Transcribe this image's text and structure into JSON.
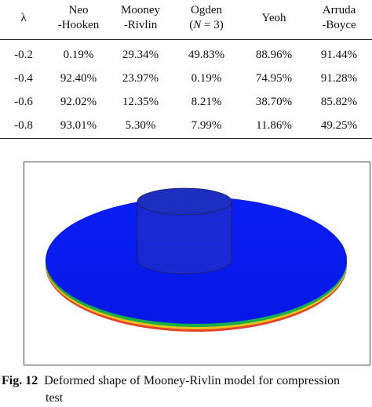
{
  "table": {
    "headers": [
      {
        "line1": "λ",
        "line2": ""
      },
      {
        "line1": "Neo",
        "line2": "-Hooken"
      },
      {
        "line1": "Mooney",
        "line2": "-Rivlin"
      },
      {
        "line1": "Ogden",
        "line2_pre": "(",
        "line2_var": "N",
        "line2_post": " = 3)"
      },
      {
        "line1": "Yeoh",
        "line2": ""
      },
      {
        "line1": "Arruda",
        "line2": "-Boyce"
      }
    ],
    "rows": [
      [
        "-0.2",
        "0.19%",
        "29.34%",
        "49.83%",
        "88.96%",
        "91.44%"
      ],
      [
        "-0.4",
        "92.40%",
        "23.97%",
        "0.19%",
        "74.95%",
        "91.28%"
      ],
      [
        "-0.6",
        "92.02%",
        "12.35%",
        "8.21%",
        "38.70%",
        "85.82%"
      ],
      [
        "-0.8",
        "93.01%",
        "5.30%",
        "7.99%",
        "11.86%",
        "49.25%"
      ]
    ]
  },
  "figure": {
    "colors": {
      "disk_fill": "#0a1cf2",
      "disk_edge_band": [
        "#16b04a",
        "#e8c21c",
        "#e5422a"
      ],
      "cylinder_fill": "#1a2cd8",
      "cylinder_mesh": "#2a2f7a"
    }
  },
  "caption": {
    "label": "Fig. 12",
    "line1": "Deformed shape of Mooney-Rivlin model for compression",
    "line2": "test"
  }
}
